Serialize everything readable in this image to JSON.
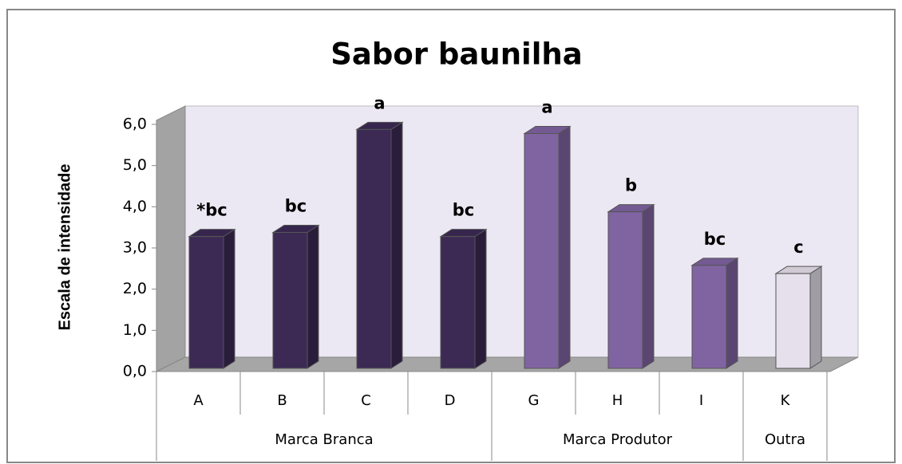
{
  "chart_data": {
    "type": "bar3d",
    "title": "Sabor baunilha",
    "y_label": "Escala de intensidade",
    "categories": [
      "A",
      "B",
      "C",
      "D",
      "G",
      "H",
      "I",
      "K"
    ],
    "groups": [
      {
        "name": "Marca Branca",
        "size": 4
      },
      {
        "name": "Marca Produtor",
        "size": 3
      },
      {
        "name": "Outra",
        "size": 1
      }
    ],
    "values": [
      3.2,
      3.3,
      5.8,
      3.2,
      5.7,
      3.8,
      2.5,
      2.3
    ],
    "annotations": [
      "*bc",
      "bc",
      "a",
      "bc",
      "a",
      "b",
      "bc",
      "c"
    ],
    "colors": [
      "#3c2a55",
      "#3c2a55",
      "#3c2a55",
      "#3c2a55",
      "#8064a2",
      "#8064a2",
      "#8064a2",
      "#e6e0ec"
    ],
    "ylim": [
      0,
      6
    ],
    "yticks": [
      {
        "value": 0,
        "label": "0,0"
      },
      {
        "value": 1,
        "label": "1,0"
      },
      {
        "value": 2,
        "label": "2,0"
      },
      {
        "value": 3,
        "label": "3,0"
      },
      {
        "value": 4,
        "label": "4,0"
      },
      {
        "value": 5,
        "label": "5,0"
      },
      {
        "value": 6,
        "label": "6,0"
      }
    ]
  }
}
